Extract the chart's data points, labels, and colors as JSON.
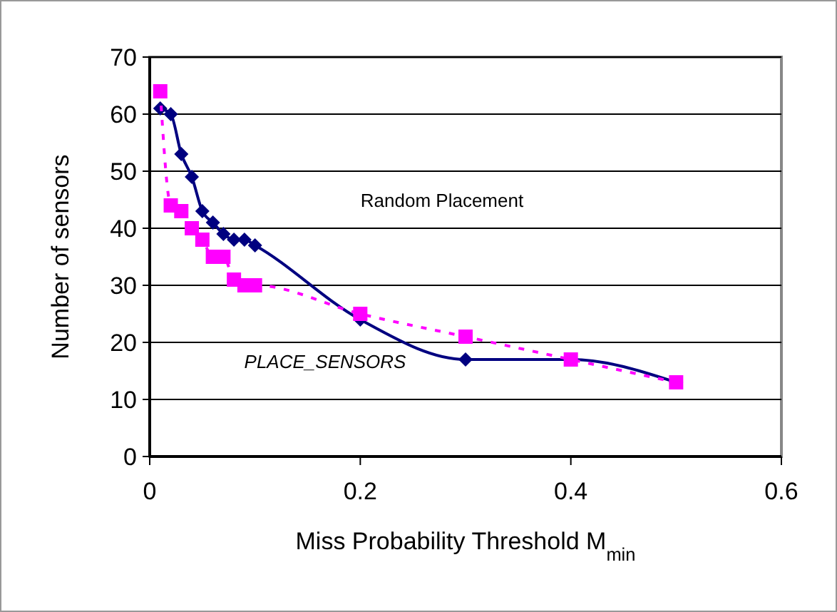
{
  "chart_data": {
    "type": "line",
    "xlabel": "Miss Probability Threshold M$_{min}$",
    "annotations": [
      "Random Placement",
      "PLACE_SENSORS"
    ],
    "ylabel": "Number of sensors",
    "xlim": [
      0,
      0.6
    ],
    "xticks": [
      0,
      0.2,
      0.4,
      0.6
    ],
    "ylim": [
      0,
      70
    ],
    "yticks": [
      0,
      10,
      20,
      30,
      40,
      50,
      60,
      70
    ],
    "grid": "y",
    "series": [
      {
        "color": "#000080",
        "line_style": "solid",
        "marker": "diamond",
        "x": [
          0.01,
          0.02,
          0.03,
          0.04,
          0.05,
          0.06,
          0.07,
          0.08,
          0.09,
          0.1,
          0.2,
          0.3,
          0.4,
          0.5
        ],
        "values": [
          61,
          60,
          53,
          49,
          43,
          41,
          39,
          38,
          38,
          37,
          24,
          17,
          17,
          13
        ]
      },
      {
        "color": "#ff00ff",
        "line_style": "dashed",
        "marker": "square",
        "x": [
          0.01,
          0.02,
          0.03,
          0.04,
          0.05,
          0.06,
          0.07,
          0.08,
          0.09,
          0.1,
          0.2,
          0.3,
          0.4,
          0.5
        ],
        "values": [
          64,
          44,
          43,
          40,
          38,
          35,
          35,
          31,
          30,
          30,
          25,
          21,
          17,
          13
        ]
      }
    ]
  }
}
